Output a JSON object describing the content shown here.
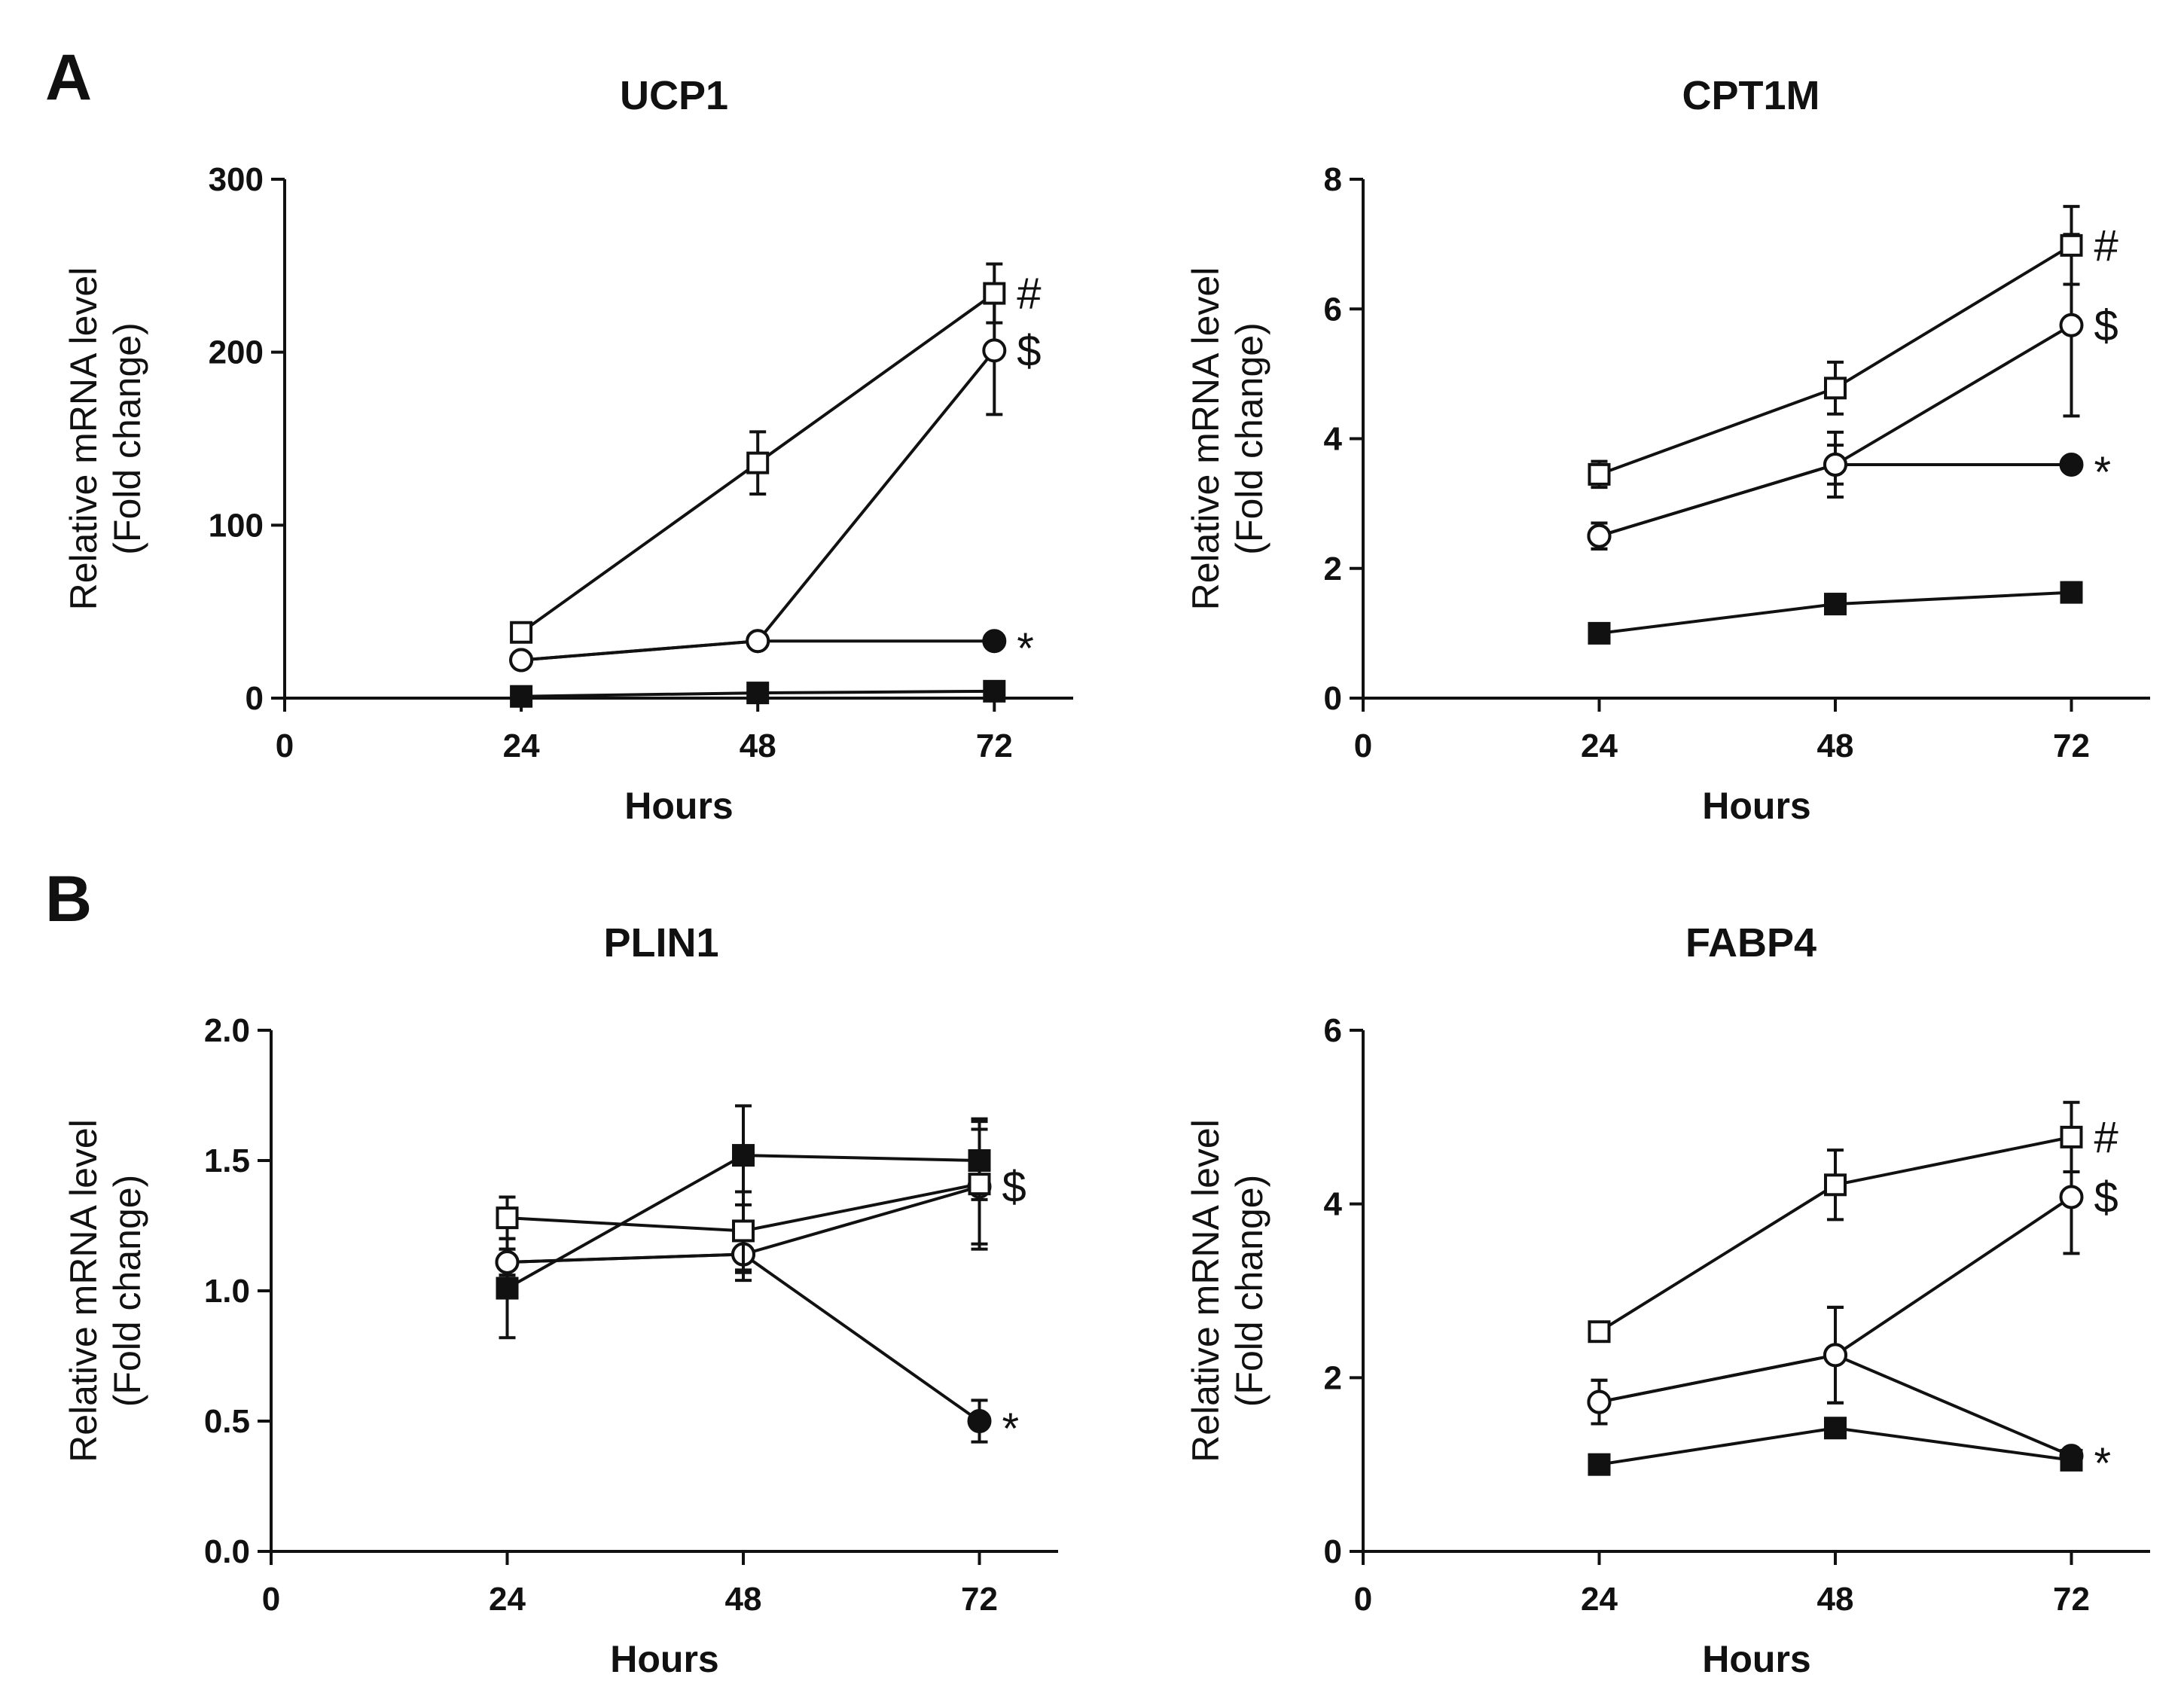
{
  "panel_labels": [
    "A",
    "B"
  ],
  "chart_data": [
    {
      "type": "line",
      "panel": "A",
      "title": "UCP1",
      "xlabel": "Hours",
      "ylabel": [
        "Relative mRNA level",
        "(Fold change)"
      ],
      "x": [
        24,
        48,
        72
      ],
      "xticks": [
        "0",
        "24",
        "48",
        "72"
      ],
      "xlim": [
        0,
        80
      ],
      "ylim": [
        0,
        300
      ],
      "yticks": [
        "0",
        "100",
        "200",
        "300"
      ],
      "series": [
        {
          "name": "filled square",
          "marker": "square-filled",
          "values": [
            1,
            3,
            4
          ],
          "errors": [
            0.5,
            1,
            2
          ]
        },
        {
          "name": "filled circle",
          "marker": "circle-filled",
          "values": [
            22,
            33,
            33
          ],
          "errors": [
            2,
            3,
            2
          ],
          "annotation": "*"
        },
        {
          "name": "open circle",
          "marker": "circle-open",
          "values": [
            22,
            33,
            201
          ],
          "errors": [
            2,
            3,
            37
          ],
          "annotation": "$"
        },
        {
          "name": "open square",
          "marker": "square-open",
          "values": [
            38,
            136,
            234
          ],
          "errors": [
            3,
            18,
            17
          ],
          "annotation": "#"
        }
      ]
    },
    {
      "type": "line",
      "panel": "A",
      "title": "CPT1M",
      "xlabel": "Hours",
      "ylabel": [
        "Relative mRNA level",
        "(Fold change)"
      ],
      "x": [
        24,
        48,
        72
      ],
      "xticks": [
        "0",
        "24",
        "48",
        "72"
      ],
      "xlim": [
        0,
        80
      ],
      "ylim": [
        0,
        8
      ],
      "yticks": [
        "0",
        "2",
        "4",
        "6",
        "8"
      ],
      "series": [
        {
          "name": "filled square",
          "marker": "square-filled",
          "values": [
            1.0,
            1.45,
            1.63
          ],
          "errors": [
            0.05,
            0.15,
            0.15
          ]
        },
        {
          "name": "filled circle",
          "marker": "circle-filled",
          "values": [
            2.5,
            3.6,
            3.6
          ],
          "errors": [
            0.2,
            0.3,
            0.05
          ],
          "annotation": "*"
        },
        {
          "name": "open circle",
          "marker": "circle-open",
          "values": [
            2.5,
            3.6,
            5.75
          ],
          "errors": [
            0.2,
            0.5,
            1.4
          ],
          "annotation": "$"
        },
        {
          "name": "open square",
          "marker": "square-open",
          "values": [
            3.45,
            4.78,
            6.98
          ],
          "errors": [
            0.2,
            0.4,
            0.6
          ],
          "annotation": "#"
        }
      ]
    },
    {
      "type": "line",
      "panel": "B",
      "title": "PLIN1",
      "xlabel": "Hours",
      "ylabel": [
        "Relative mRNA level",
        "(Fold change)"
      ],
      "x": [
        24,
        48,
        72
      ],
      "xticks": [
        "0",
        "24",
        "48",
        "72"
      ],
      "xlim": [
        0,
        80
      ],
      "ylim": [
        0,
        2.0
      ],
      "yticks": [
        "0.0",
        "0.5",
        "1.0",
        "1.5",
        "2.0"
      ],
      "series": [
        {
          "name": "filled square",
          "marker": "square-filled",
          "values": [
            1.01,
            1.52,
            1.5
          ],
          "errors": [
            0.19,
            0.19,
            0.15
          ]
        },
        {
          "name": "filled circle",
          "marker": "circle-filled",
          "values": [
            1.11,
            1.14,
            0.5
          ],
          "errors": [
            0.05,
            0.07,
            0.08
          ],
          "annotation": "*"
        },
        {
          "name": "open circle",
          "marker": "circle-open",
          "values": [
            1.11,
            1.14,
            1.4
          ],
          "errors": [
            0.05,
            0.1,
            0.22
          ],
          "annotation": "$"
        },
        {
          "name": "open square",
          "marker": "square-open",
          "values": [
            1.28,
            1.23,
            1.41
          ],
          "errors": [
            0.08,
            0.15,
            0.25
          ]
        }
      ]
    },
    {
      "type": "line",
      "panel": "B",
      "title": "FABP4",
      "xlabel": "Hours",
      "ylabel": [
        "Relative mRNA level",
        "(Fold change)"
      ],
      "x": [
        24,
        48,
        72
      ],
      "xticks": [
        "0",
        "24",
        "48",
        "72"
      ],
      "xlim": [
        0,
        80
      ],
      "ylim": [
        0,
        6
      ],
      "yticks": [
        "0",
        "2",
        "4",
        "6"
      ],
      "series": [
        {
          "name": "filled square",
          "marker": "square-filled",
          "values": [
            1.0,
            1.42,
            1.05
          ],
          "errors": [
            0.05,
            0.1,
            0.05
          ]
        },
        {
          "name": "filled circle",
          "marker": "circle-filled",
          "values": [
            1.72,
            2.26,
            1.1
          ],
          "errors": [
            0.25,
            0.55,
            0.05
          ],
          "annotation": "*"
        },
        {
          "name": "open circle",
          "marker": "circle-open",
          "values": [
            1.72,
            2.26,
            4.08
          ],
          "errors": [
            0.25,
            0.55,
            0.65
          ],
          "annotation": "$"
        },
        {
          "name": "open square",
          "marker": "square-open",
          "values": [
            2.53,
            4.22,
            4.77
          ],
          "errors": [
            0.05,
            0.4,
            0.4
          ],
          "annotation": "#"
        }
      ]
    }
  ]
}
